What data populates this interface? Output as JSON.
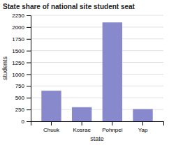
{
  "chart_data": {
    "type": "bar",
    "title": "State share of national site student seat",
    "categories": [
      "Chuuk",
      "Kosrae",
      "Pohnpei",
      "Yap"
    ],
    "values": [
      650,
      300,
      2100,
      260
    ],
    "color": "#8888cc",
    "xlabel": "state",
    "ylabel": "students",
    "ylim": [
      0,
      2250
    ],
    "yticks": [
      0,
      250,
      500,
      750,
      1000,
      1250,
      1500,
      1750,
      2000,
      2250
    ],
    "grid": true
  }
}
